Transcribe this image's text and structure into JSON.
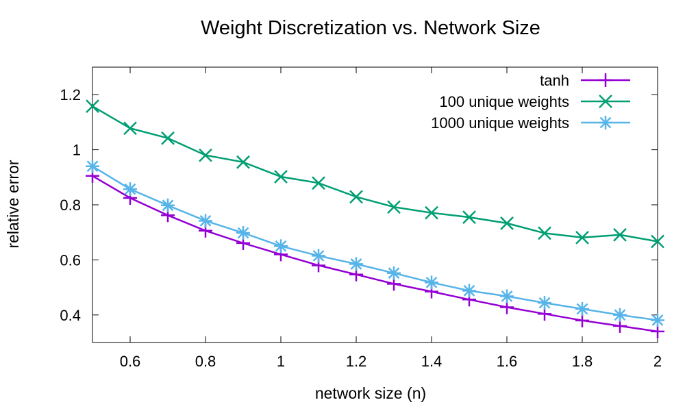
{
  "chart_data": {
    "type": "line",
    "title": "Weight Discretization vs. Network Size",
    "xlabel": "network size (n)",
    "ylabel": "relative error",
    "xlim": [
      0.5,
      2.0
    ],
    "ylim": [
      0.3,
      1.3
    ],
    "xticks": [
      0.6,
      0.8,
      1.0,
      1.2,
      1.4,
      1.6,
      1.8,
      2.0
    ],
    "xtick_labels": [
      "0.6",
      "0.8",
      "1",
      "1.2",
      "1.4",
      "1.6",
      "1.8",
      "2"
    ],
    "yticks": [
      0.4,
      0.6,
      0.8,
      1.0,
      1.2
    ],
    "ytick_labels": [
      "0.4",
      "0.6",
      "0.8",
      "1",
      "1.2"
    ],
    "legend_position": "top-right",
    "grid": false,
    "x": [
      0.5,
      0.6,
      0.7,
      0.8,
      0.9,
      1.0,
      1.1,
      1.2,
      1.3,
      1.4,
      1.5,
      1.6,
      1.7,
      1.8,
      1.9,
      2.0
    ],
    "series": [
      {
        "name": "tanh",
        "color": "#9400d3",
        "marker": "plus",
        "values": [
          0.905,
          0.825,
          0.762,
          0.706,
          0.661,
          0.62,
          0.58,
          0.547,
          0.513,
          0.485,
          0.456,
          0.428,
          0.404,
          0.38,
          0.36,
          0.34
        ]
      },
      {
        "name": "100 unique weights",
        "color": "#009e73",
        "marker": "cross",
        "values": [
          1.158,
          1.078,
          1.042,
          0.98,
          0.955,
          0.902,
          0.879,
          0.829,
          0.792,
          0.771,
          0.755,
          0.733,
          0.697,
          0.681,
          0.691,
          0.667
        ]
      },
      {
        "name": "1000 unique weights",
        "color": "#56b4e9",
        "marker": "star",
        "values": [
          0.94,
          0.857,
          0.798,
          0.742,
          0.698,
          0.65,
          0.615,
          0.585,
          0.552,
          0.518,
          0.488,
          0.468,
          0.444,
          0.422,
          0.4,
          0.381
        ]
      }
    ]
  }
}
